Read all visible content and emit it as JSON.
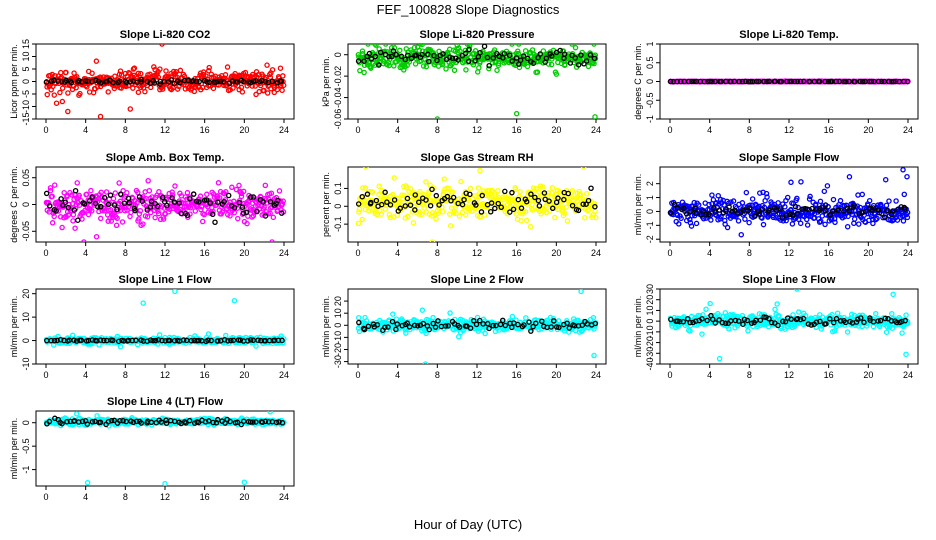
{
  "title": "FEF_100828  Slope Diagnostics",
  "xlabel": "Hour of Day (UTC)",
  "colors": {
    "red": "#ff0000",
    "green": "#00cc00",
    "magenta": "#ff00ff",
    "yellow": "#ffff00",
    "blue": "#0000ff",
    "cyan": "#00ffff",
    "black": "#000000"
  },
  "chart_data": [
    {
      "type": "scatter",
      "title": "Slope Li-820 CO2",
      "ylabel": "Licor ppm per min.",
      "color": "#ff0000",
      "xlim": [
        0,
        24
      ],
      "ylim": [
        -15,
        15
      ],
      "xticks": [
        0,
        4,
        8,
        12,
        16,
        20,
        24
      ],
      "yticks": [
        -15,
        -10,
        -5,
        0,
        5,
        10,
        15
      ],
      "baseline": 0,
      "spread": 4,
      "outliers": [
        [
          11.7,
          16
        ],
        [
          5.5,
          -14
        ],
        [
          8.5,
          -11
        ],
        [
          2.2,
          -12
        ]
      ],
      "black_spread": 0.8
    },
    {
      "type": "scatter",
      "title": "Slope Li-820 Pressure",
      "ylabel": "kPa per min.",
      "color": "#00cc00",
      "xlim": [
        0,
        24
      ],
      "ylim": [
        -0.06,
        0.01
      ],
      "xticks": [
        0,
        4,
        8,
        12,
        16,
        20,
        24
      ],
      "yticks": [
        -0.06,
        -0.04,
        -0.02,
        0
      ],
      "baseline": -0.003,
      "spread": 0.009,
      "outliers": [
        [
          8,
          -0.06
        ],
        [
          16,
          -0.055
        ],
        [
          23.9,
          -0.058
        ],
        [
          23.8,
          0.014
        ]
      ],
      "black_spread": 0.007
    },
    {
      "type": "scatter",
      "title": "Slope Li-820 Temp.",
      "ylabel": "degrees C per min.",
      "color": "#ff00ff",
      "xlim": [
        0,
        24
      ],
      "ylim": [
        -1,
        1
      ],
      "xticks": [
        0,
        4,
        8,
        12,
        16,
        20,
        24
      ],
      "yticks": [
        -1,
        -0.5,
        0,
        0.5,
        1
      ],
      "baseline": 0,
      "spread": 0.005,
      "outliers": [],
      "black_spread": 0.004
    },
    {
      "type": "scatter",
      "title": "Slope Amb. Box Temp.",
      "ylabel": "degrees C per min.",
      "color": "#ff00ff",
      "xlim": [
        0,
        24
      ],
      "ylim": [
        -0.07,
        0.07
      ],
      "xticks": [
        0,
        4,
        8,
        12,
        16,
        20,
        24
      ],
      "yticks": [
        -0.05,
        0,
        0.05
      ],
      "baseline": 0,
      "spread": 0.03,
      "outliers": [],
      "black_spread": 0.025
    },
    {
      "type": "scatter",
      "title": "Slope Gas Stream RH",
      "ylabel": "percent per min.",
      "color": "#ffff00",
      "xlim": [
        0,
        24
      ],
      "ylim": [
        -0.2,
        0.22
      ],
      "xticks": [
        0,
        4,
        8,
        12,
        16,
        20,
        24
      ],
      "yticks": [
        -0.1,
        0,
        0.1
      ],
      "baseline": 0.02,
      "spread": 0.08,
      "outliers": [
        [
          12.3,
          0.2
        ],
        [
          7.5,
          -0.2
        ]
      ],
      "black_spread": 0.06
    },
    {
      "type": "scatter",
      "title": "Slope Sample Flow",
      "ylabel": "ml/min per min.",
      "color": "#0000ff",
      "xlim": [
        0,
        24
      ],
      "ylim": [
        -2.2,
        3.2
      ],
      "xticks": [
        0,
        4,
        8,
        12,
        16,
        20,
        24
      ],
      "yticks": [
        -2,
        -1,
        0,
        1,
        2
      ],
      "baseline": 0,
      "spread": 0.9,
      "outliers": [
        [
          23.5,
          3
        ],
        [
          23.9,
          2.5
        ],
        [
          12.2,
          2.1
        ]
      ],
      "black_spread": 0.4
    },
    {
      "type": "scatter",
      "title": "Slope Line 1 Flow",
      "ylabel": "ml/min per min.",
      "color": "#00ffff",
      "xlim": [
        0,
        24
      ],
      "ylim": [
        -10,
        22
      ],
      "xticks": [
        0,
        4,
        8,
        12,
        16,
        20,
        24
      ],
      "yticks": [
        -10,
        0,
        10,
        20
      ],
      "baseline": 0,
      "spread": 1.2,
      "outliers": [
        [
          13,
          21
        ],
        [
          19,
          17
        ],
        [
          9.8,
          16
        ]
      ],
      "black_spread": 0.3
    },
    {
      "type": "scatter",
      "title": "Slope Line 2 Flow",
      "ylabel": "ml/min per min.",
      "color": "#00ffff",
      "xlim": [
        0,
        24
      ],
      "ylim": [
        -32,
        30
      ],
      "xticks": [
        0,
        4,
        8,
        12,
        16,
        20,
        24
      ],
      "yticks": [
        -30,
        -20,
        -10,
        0,
        10,
        20
      ],
      "baseline": 0,
      "spread": 5,
      "outliers": [
        [
          6.8,
          -32
        ],
        [
          23.8,
          -25
        ],
        [
          22.5,
          28
        ]
      ],
      "black_spread": 4
    },
    {
      "type": "scatter",
      "title": "Slope Line 3 Flow",
      "ylabel": "ml/min per min.",
      "color": "#00ffff",
      "xlim": [
        0,
        24
      ],
      "ylim": [
        -40,
        30
      ],
      "xticks": [
        0,
        4,
        8,
        12,
        16,
        20,
        24
      ],
      "yticks": [
        -40,
        -30,
        -20,
        -10,
        0,
        10,
        20,
        30
      ],
      "baseline": 0,
      "spread": 6,
      "outliers": [
        [
          5,
          -35
        ],
        [
          23.8,
          -31
        ],
        [
          12.8,
          30
        ],
        [
          22.5,
          25
        ]
      ],
      "black_spread": 4
    },
    {
      "type": "scatter",
      "title": "Slope Line 4 (LT) Flow",
      "ylabel": "ml/min per min.",
      "color": "#00ffff",
      "xlim": [
        0,
        24
      ],
      "ylim": [
        -1.35,
        0.25
      ],
      "xticks": [
        0,
        4,
        8,
        12,
        16,
        20,
        24
      ],
      "yticks": [
        -1,
        -0.5,
        0
      ],
      "baseline": 0.02,
      "spread": 0.06,
      "outliers": [
        [
          4.2,
          -1.28
        ],
        [
          12,
          -1.3
        ],
        [
          20,
          -1.27
        ]
      ],
      "black_spread": 0.05
    }
  ]
}
